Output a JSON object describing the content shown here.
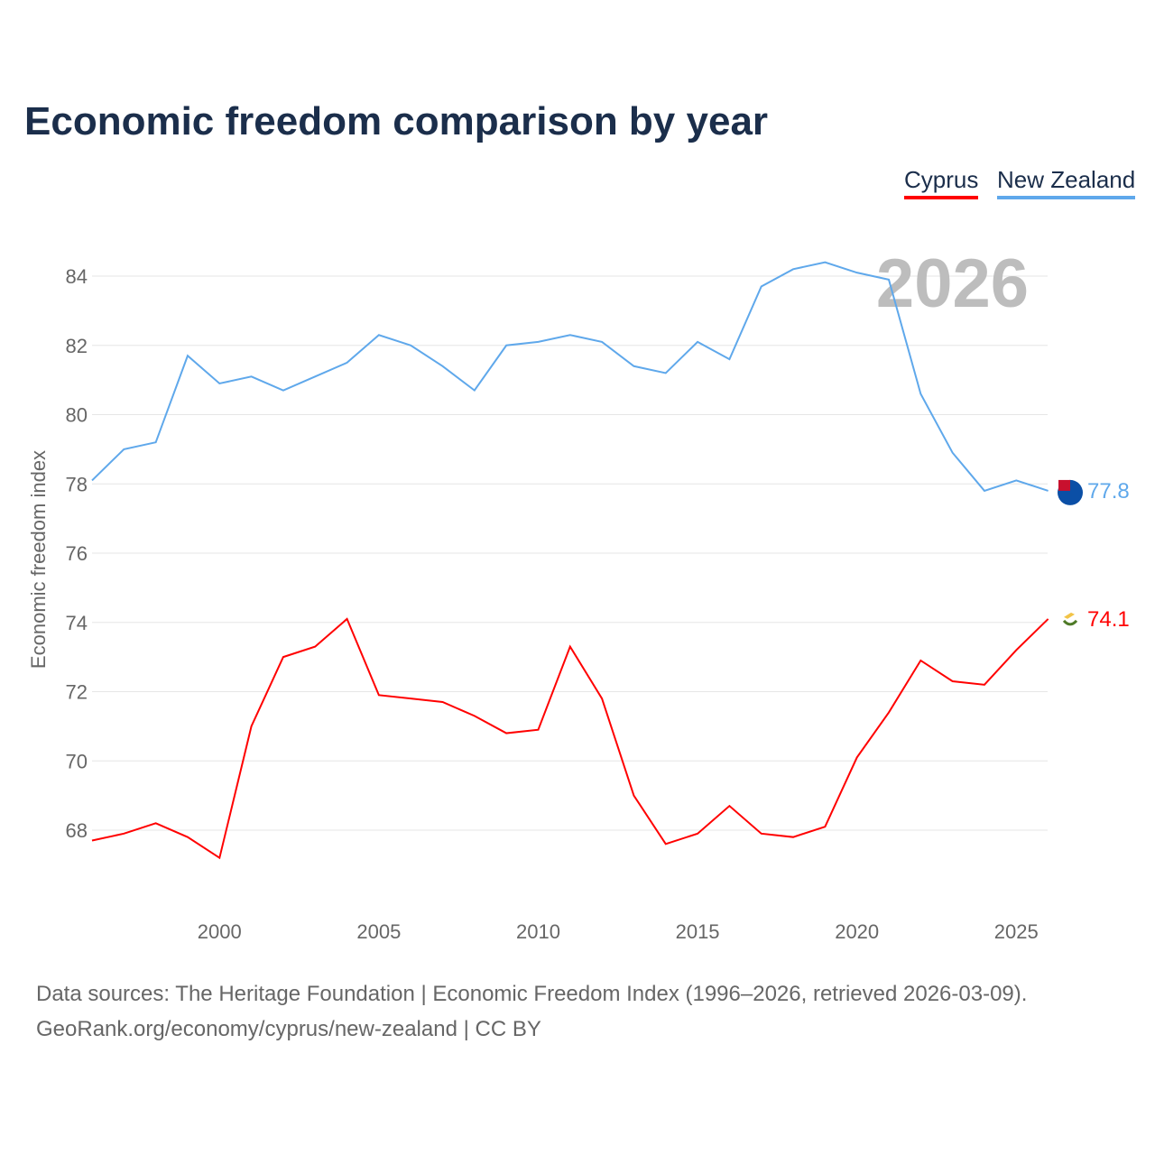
{
  "chart_data": {
    "type": "line",
    "title": "Economic freedom comparison by year",
    "ylabel": "Economic freedom index",
    "xlabel": "",
    "ylim": [
      66,
      85
    ],
    "xlim": [
      1996,
      2026
    ],
    "yticks": [
      68,
      70,
      72,
      74,
      76,
      78,
      80,
      82,
      84
    ],
    "xticks": [
      2000,
      2005,
      2010,
      2015,
      2020,
      2025
    ],
    "grid": true,
    "legend_position": "top-right",
    "year_watermark": "2026",
    "x": [
      1996,
      1997,
      1998,
      1999,
      2000,
      2001,
      2002,
      2003,
      2004,
      2005,
      2006,
      2007,
      2008,
      2009,
      2010,
      2011,
      2012,
      2013,
      2014,
      2015,
      2016,
      2017,
      2018,
      2019,
      2020,
      2021,
      2022,
      2023,
      2024,
      2025,
      2026
    ],
    "series": [
      {
        "name": "Cyprus",
        "color": "#ff0000",
        "end_label": "74.1",
        "flag": "cyprus-flag",
        "values": [
          67.7,
          67.9,
          68.2,
          67.8,
          67.2,
          71.0,
          73.0,
          73.3,
          74.1,
          71.9,
          71.8,
          71.7,
          71.3,
          70.8,
          70.9,
          73.3,
          71.8,
          69.0,
          67.6,
          67.9,
          68.7,
          67.9,
          67.8,
          68.1,
          70.1,
          71.4,
          72.9,
          72.3,
          72.2,
          73.2,
          74.1
        ]
      },
      {
        "name": "New Zealand",
        "color": "#5fa8eb",
        "end_label": "77.8",
        "flag": "new-zealand-flag",
        "values": [
          78.1,
          79.0,
          79.2,
          81.7,
          80.9,
          81.1,
          80.7,
          81.1,
          81.5,
          82.3,
          82.0,
          81.4,
          80.7,
          82.0,
          82.1,
          82.3,
          82.1,
          81.4,
          81.2,
          82.1,
          81.6,
          83.7,
          84.2,
          84.4,
          84.1,
          83.9,
          80.6,
          78.9,
          77.8,
          78.1,
          77.8
        ]
      }
    ]
  },
  "footer": {
    "line1": "Data sources: The Heritage Foundation | Economic Freedom Index (1996–2026, retrieved 2026-03-09).",
    "line2": "GeoRank.org/economy/cyprus/new-zealand | CC BY"
  }
}
